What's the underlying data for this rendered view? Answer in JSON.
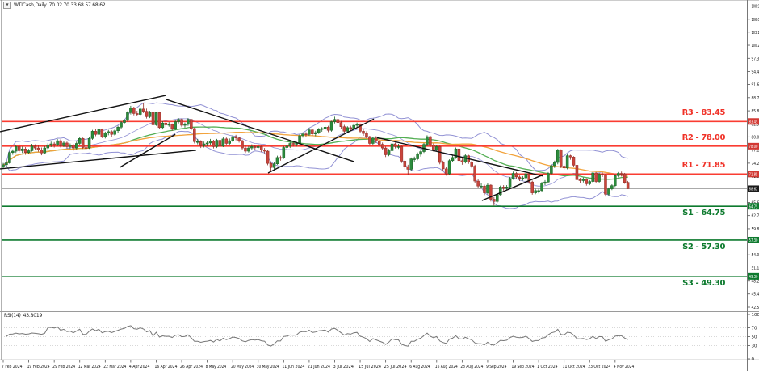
{
  "window": {
    "symbol": "WTICash,Daily",
    "ohlc": "70.02 70.33 68.57 68.62",
    "collapse_icon": "▼"
  },
  "rsi_panel": {
    "label": "RSI(14)",
    "value": "43.8019"
  },
  "chart_data": {
    "type": "candlestick",
    "title": "WTICash,Daily",
    "x_labels": [
      "7 Feb 2024",
      "19 Feb 2024",
      "29 Feb 2024",
      "12 Mar 2024",
      "22 Mar 2024",
      "4 Apr 2024",
      "16 Apr 2024",
      "26 Apr 2024",
      "8 May 2024",
      "20 May 2024",
      "30 May 2024",
      "11 Jun 2024",
      "21 Jun 2024",
      "3 Jul 2024",
      "15 Jul 2024",
      "25 Jul 2024",
      "6 Aug 2024",
      "16 Aug 2024",
      "28 Aug 2024",
      "9 Sep 2024",
      "19 Sep 2024",
      "1 Oct 2024",
      "11 Oct 2024",
      "23 Oct 2024",
      "4 Nov 2024"
    ],
    "bars_per_label": 8,
    "y_ticks": [
      108.9,
      106.0,
      103.15,
      100.25,
      97.35,
      94.45,
      91.6,
      88.7,
      85.8,
      82.9,
      80.05,
      77.15,
      74.25,
      71.35,
      68.45,
      65.6,
      62.7,
      59.8,
      56.9,
      54.05,
      51.15,
      48.25,
      45.4,
      42.5
    ],
    "levels": [
      {
        "name": "R3",
        "label": "R3 - 83.45",
        "axis_label": "83.45",
        "price": 83.45,
        "type": "resistance"
      },
      {
        "name": "R2",
        "label": "R2 - 78.00",
        "axis_label": "78.00",
        "price": 78.0,
        "type": "resistance"
      },
      {
        "name": "R1",
        "label": "R1 - 71.85",
        "axis_label": "71.85",
        "price": 71.85,
        "type": "resistance"
      },
      {
        "name": "S1",
        "label": "S1 - 64.75",
        "axis_label": "64.75",
        "price": 64.75,
        "type": "support"
      },
      {
        "name": "S2",
        "label": "S2 - 57.30",
        "axis_label": "57.30",
        "price": 57.3,
        "type": "support"
      },
      {
        "name": "S3",
        "label": "S3 - 49.30",
        "axis_label": "49.30",
        "price": 49.3,
        "type": "support"
      }
    ],
    "current_price": {
      "price": 68.62,
      "axis_label": "68.62"
    },
    "rsi": {
      "label": "RSI(14)",
      "value": 43.8019,
      "period": 14,
      "range": [
        0,
        100
      ],
      "grid_levels": [
        70,
        50,
        30
      ],
      "axis_ticks": [
        100,
        70,
        50,
        30,
        0
      ]
    },
    "overlays": {
      "bollinger": {
        "period": 20,
        "deviation": 2
      },
      "ma_fast": {
        "period": 40
      },
      "ma_slow": {
        "period": 60
      }
    },
    "trendlines": [
      [
        [
          -1,
          81.2
        ],
        [
          51,
          89.2
        ]
      ],
      [
        [
          -1,
          73.0
        ],
        [
          60.5,
          77.1
        ]
      ],
      [
        [
          36.5,
          73.3
        ],
        [
          54,
          80.6
        ]
      ],
      [
        [
          51.2,
          88.3
        ],
        [
          110,
          74.6
        ]
      ],
      [
        [
          83.1,
          72.1
        ],
        [
          116.3,
          84.0
        ]
      ],
      [
        [
          117.3,
          79.9
        ],
        [
          169.4,
          71.4
        ]
      ],
      [
        [
          150.2,
          66.0
        ],
        [
          169.4,
          71.7
        ]
      ]
    ],
    "candles": [
      [
        73.5,
        74.3,
        73.1,
        73.9
      ],
      [
        73.9,
        74.8,
        73.5,
        74.3
      ],
      [
        74.3,
        76.9,
        74.1,
        76.6
      ],
      [
        76.6,
        77.3,
        76.1,
        76.9
      ],
      [
        76.9,
        78.3,
        76.5,
        77.9
      ],
      [
        77.9,
        78.4,
        76.6,
        77.0
      ],
      [
        77.0,
        77.9,
        76.5,
        77.4
      ],
      [
        77.4,
        77.8,
        76.1,
        76.6
      ],
      [
        76.6,
        77.4,
        76.2,
        77.0
      ],
      [
        77.0,
        78.5,
        76.8,
        78.0
      ],
      [
        78.0,
        78.4,
        77.1,
        77.6
      ],
      [
        77.6,
        78.1,
        76.8,
        77.2
      ],
      [
        77.2,
        77.7,
        76.0,
        76.5
      ],
      [
        76.5,
        78.0,
        76.3,
        77.6
      ],
      [
        77.6,
        78.7,
        77.2,
        78.3
      ],
      [
        78.3,
        79.0,
        77.8,
        78.5
      ],
      [
        78.5,
        78.9,
        77.7,
        78.3
      ],
      [
        78.3,
        79.6,
        78.0,
        79.2
      ],
      [
        79.2,
        79.5,
        77.7,
        78.1
      ],
      [
        78.1,
        79.1,
        77.8,
        78.7
      ],
      [
        78.7,
        79.0,
        77.5,
        77.9
      ],
      [
        77.9,
        78.6,
        77.4,
        78.2
      ],
      [
        78.2,
        78.5,
        77.0,
        77.6
      ],
      [
        77.6,
        79.0,
        77.3,
        78.6
      ],
      [
        78.6,
        80.1,
        78.3,
        79.7
      ],
      [
        79.7,
        79.9,
        77.4,
        77.7
      ],
      [
        77.7,
        78.2,
        77.2,
        77.6
      ],
      [
        77.6,
        80.0,
        77.4,
        79.7
      ],
      [
        79.7,
        81.6,
        79.4,
        81.3
      ],
      [
        81.3,
        81.8,
        80.2,
        80.6
      ],
      [
        80.6,
        82.0,
        80.3,
        81.7
      ],
      [
        81.7,
        81.9,
        79.8,
        80.1
      ],
      [
        80.1,
        81.2,
        79.7,
        80.9
      ],
      [
        80.9,
        81.6,
        80.4,
        81.2
      ],
      [
        81.2,
        81.5,
        80.1,
        80.6
      ],
      [
        80.6,
        81.7,
        80.3,
        81.4
      ],
      [
        81.4,
        82.5,
        81.0,
        82.2
      ],
      [
        82.2,
        83.5,
        81.9,
        83.2
      ],
      [
        83.2,
        84.0,
        82.8,
        83.7
      ],
      [
        83.7,
        85.7,
        83.4,
        85.4
      ],
      [
        85.4,
        86.9,
        85.0,
        86.4
      ],
      [
        86.4,
        86.7,
        84.8,
        85.2
      ],
      [
        85.2,
        85.8,
        84.6,
        85.0
      ],
      [
        85.0,
        86.6,
        84.7,
        86.2
      ],
      [
        86.2,
        87.6,
        85.3,
        85.7
      ],
      [
        85.7,
        86.3,
        84.1,
        84.5
      ],
      [
        84.5,
        85.8,
        84.2,
        85.4
      ],
      [
        85.4,
        85.6,
        82.3,
        82.7
      ],
      [
        82.7,
        85.6,
        82.5,
        85.4
      ],
      [
        85.4,
        85.5,
        81.8,
        82.1
      ],
      [
        82.1,
        83.5,
        81.7,
        83.1
      ],
      [
        83.1,
        83.4,
        82.2,
        82.7
      ],
      [
        82.7,
        83.3,
        82.3,
        82.8
      ],
      [
        82.8,
        83.0,
        81.4,
        81.9
      ],
      [
        81.9,
        83.7,
        81.6,
        83.4
      ],
      [
        83.4,
        84.2,
        83.0,
        83.9
      ],
      [
        83.9,
        84.1,
        82.2,
        82.6
      ],
      [
        82.6,
        83.2,
        82.1,
        82.8
      ],
      [
        82.8,
        84.2,
        82.5,
        83.9
      ],
      [
        83.9,
        84.0,
        81.5,
        81.9
      ],
      [
        81.9,
        82.1,
        78.6,
        79.0
      ],
      [
        79.0,
        79.6,
        78.4,
        79.0
      ],
      [
        79.0,
        79.3,
        77.6,
        78.1
      ],
      [
        78.1,
        79.0,
        77.7,
        78.5
      ],
      [
        78.5,
        79.2,
        78.0,
        78.7
      ],
      [
        78.7,
        79.6,
        78.3,
        79.1
      ],
      [
        79.1,
        79.4,
        77.5,
        77.9
      ],
      [
        77.9,
        79.6,
        77.6,
        79.3
      ],
      [
        79.3,
        79.5,
        77.6,
        78.0
      ],
      [
        78.0,
        80.0,
        77.8,
        79.6
      ],
      [
        79.6,
        79.9,
        78.2,
        78.6
      ],
      [
        78.6,
        79.7,
        78.3,
        79.2
      ],
      [
        79.2,
        80.4,
        78.9,
        80.1
      ],
      [
        80.1,
        80.5,
        79.3,
        79.8
      ],
      [
        79.8,
        80.0,
        78.8,
        79.2
      ],
      [
        79.2,
        79.4,
        77.2,
        77.6
      ],
      [
        77.6,
        78.1,
        76.5,
        76.9
      ],
      [
        76.9,
        78.0,
        76.6,
        77.6
      ],
      [
        77.6,
        78.4,
        77.2,
        77.9
      ],
      [
        77.9,
        78.2,
        77.2,
        77.7
      ],
      [
        77.7,
        78.4,
        77.4,
        77.9
      ],
      [
        77.9,
        78.1,
        76.7,
        77.2
      ],
      [
        77.2,
        77.6,
        76.4,
        76.9
      ],
      [
        76.9,
        77.1,
        73.8,
        74.2
      ],
      [
        74.2,
        74.6,
        72.6,
        73.3
      ],
      [
        73.3,
        74.5,
        72.9,
        74.1
      ],
      [
        74.1,
        75.9,
        73.9,
        75.5
      ],
      [
        75.5,
        75.9,
        74.8,
        75.4
      ],
      [
        75.4,
        78.0,
        75.2,
        77.7
      ],
      [
        77.7,
        78.3,
        77.1,
        78.0
      ],
      [
        78.0,
        79.0,
        77.6,
        78.6
      ],
      [
        78.6,
        78.9,
        77.9,
        78.5
      ],
      [
        78.5,
        79.0,
        77.9,
        78.6
      ],
      [
        78.6,
        80.6,
        78.4,
        80.3
      ],
      [
        80.3,
        81.0,
        79.9,
        80.7
      ],
      [
        80.7,
        81.1,
        80.0,
        80.6
      ],
      [
        80.6,
        82.0,
        80.3,
        81.6
      ],
      [
        81.6,
        81.9,
        80.3,
        80.7
      ],
      [
        80.7,
        81.4,
        80.2,
        81.0
      ],
      [
        81.0,
        82.0,
        80.7,
        81.7
      ],
      [
        81.7,
        82.2,
        81.2,
        81.9
      ],
      [
        81.9,
        82.6,
        81.5,
        82.2
      ],
      [
        82.2,
        82.5,
        81.1,
        81.5
      ],
      [
        81.5,
        83.6,
        81.2,
        83.4
      ],
      [
        83.4,
        84.5,
        83.0,
        83.9
      ],
      [
        83.9,
        84.3,
        82.8,
        83.2
      ],
      [
        83.2,
        83.6,
        81.9,
        82.3
      ],
      [
        82.3,
        82.7,
        80.9,
        81.3
      ],
      [
        81.3,
        82.4,
        81.0,
        82.1
      ],
      [
        82.1,
        82.5,
        81.3,
        81.9
      ],
      [
        81.9,
        83.0,
        81.6,
        82.6
      ],
      [
        82.6,
        83.2,
        82.1,
        82.8
      ],
      [
        82.8,
        83.0,
        80.9,
        81.3
      ],
      [
        81.3,
        81.7,
        80.3,
        80.8
      ],
      [
        80.8,
        81.3,
        79.7,
        80.1
      ],
      [
        80.1,
        80.3,
        78.2,
        78.6
      ],
      [
        78.6,
        80.1,
        78.3,
        79.8
      ],
      [
        79.8,
        80.2,
        78.7,
        79.1
      ],
      [
        79.1,
        79.4,
        77.9,
        78.4
      ],
      [
        78.4,
        78.8,
        77.1,
        77.6
      ],
      [
        77.6,
        77.9,
        75.6,
        76.1
      ],
      [
        76.1,
        77.4,
        75.8,
        77.0
      ],
      [
        77.0,
        78.8,
        76.7,
        78.5
      ],
      [
        78.5,
        78.8,
        77.5,
        77.9
      ],
      [
        77.9,
        78.5,
        77.4,
        77.9
      ],
      [
        77.9,
        78.1,
        74.3,
        74.7
      ],
      [
        74.7,
        75.0,
        72.9,
        73.5
      ],
      [
        73.5,
        73.9,
        71.7,
        72.9
      ],
      [
        72.9,
        75.5,
        72.6,
        75.2
      ],
      [
        75.2,
        75.7,
        74.5,
        75.2
      ],
      [
        75.2,
        76.6,
        74.9,
        76.2
      ],
      [
        76.2,
        77.1,
        75.7,
        76.8
      ],
      [
        76.8,
        78.7,
        76.5,
        78.4
      ],
      [
        78.4,
        80.4,
        78.0,
        80.1
      ],
      [
        80.1,
        80.3,
        77.8,
        78.2
      ],
      [
        78.2,
        78.6,
        76.8,
        77.2
      ],
      [
        77.2,
        78.3,
        76.9,
        77.9
      ],
      [
        77.9,
        78.1,
        74.0,
        74.4
      ],
      [
        74.4,
        74.8,
        72.5,
        73.0
      ],
      [
        73.0,
        73.4,
        71.5,
        71.9
      ],
      [
        71.9,
        75.1,
        71.7,
        74.8
      ],
      [
        74.8,
        76.0,
        74.4,
        75.5
      ],
      [
        75.5,
        77.7,
        75.2,
        77.4
      ],
      [
        77.4,
        77.6,
        74.4,
        74.8
      ],
      [
        74.8,
        75.3,
        73.9,
        74.5
      ],
      [
        74.5,
        76.2,
        74.2,
        75.9
      ],
      [
        75.9,
        76.1,
        74.1,
        74.5
      ],
      [
        74.5,
        74.9,
        73.1,
        73.6
      ],
      [
        73.6,
        73.9,
        69.9,
        70.3
      ],
      [
        70.3,
        70.8,
        68.8,
        69.2
      ],
      [
        69.2,
        69.9,
        68.7,
        69.2
      ],
      [
        69.2,
        69.5,
        67.2,
        67.7
      ],
      [
        67.7,
        69.8,
        67.4,
        69.4
      ],
      [
        69.4,
        69.6,
        65.8,
        66.3
      ],
      [
        66.3,
        66.8,
        64.9,
        65.8
      ],
      [
        65.8,
        67.6,
        65.5,
        67.3
      ],
      [
        67.3,
        69.3,
        67.0,
        69.0
      ],
      [
        69.0,
        69.4,
        68.2,
        68.7
      ],
      [
        68.7,
        69.4,
        68.3,
        69.0
      ],
      [
        69.0,
        71.2,
        68.8,
        70.9
      ],
      [
        70.9,
        72.4,
        70.6,
        72.0
      ],
      [
        72.0,
        72.3,
        70.7,
        71.2
      ],
      [
        71.2,
        71.5,
        70.3,
        70.9
      ],
      [
        70.9,
        71.4,
        70.4,
        71.0
      ],
      [
        71.0,
        72.2,
        70.6,
        71.9
      ],
      [
        71.9,
        72.1,
        69.7,
        70.1
      ],
      [
        70.1,
        70.4,
        67.3,
        67.7
      ],
      [
        67.7,
        68.6,
        67.4,
        68.2
      ],
      [
        68.2,
        68.6,
        67.6,
        68.2
      ],
      [
        68.2,
        70.1,
        67.9,
        69.8
      ],
      [
        69.8,
        70.5,
        69.4,
        70.1
      ],
      [
        70.1,
        72.3,
        69.8,
        72.0
      ],
      [
        72.0,
        74.0,
        71.6,
        73.7
      ],
      [
        73.7,
        74.8,
        73.2,
        74.4
      ],
      [
        74.4,
        77.4,
        74.0,
        77.1
      ],
      [
        77.1,
        77.3,
        73.2,
        73.6
      ],
      [
        73.6,
        74.0,
        72.8,
        73.2
      ],
      [
        73.2,
        76.2,
        72.9,
        75.9
      ],
      [
        75.9,
        76.1,
        75.0,
        75.6
      ],
      [
        75.6,
        75.8,
        73.4,
        73.8
      ],
      [
        73.8,
        74.1,
        70.2,
        70.6
      ],
      [
        70.6,
        71.0,
        69.9,
        70.4
      ],
      [
        70.4,
        71.1,
        70.0,
        70.7
      ],
      [
        70.7,
        70.9,
        69.3,
        69.7
      ],
      [
        69.7,
        70.5,
        69.4,
        70.2
      ],
      [
        70.2,
        72.3,
        69.9,
        72.1
      ],
      [
        72.1,
        72.3,
        69.8,
        70.2
      ],
      [
        70.2,
        72.1,
        69.9,
        71.8
      ],
      [
        71.8,
        72.2,
        71.2,
        71.7
      ],
      [
        71.7,
        71.9,
        66.9,
        67.4
      ],
      [
        67.4,
        68.9,
        67.1,
        68.6
      ],
      [
        68.6,
        69.6,
        68.3,
        69.3
      ],
      [
        69.3,
        71.8,
        69.0,
        71.5
      ],
      [
        71.5,
        72.3,
        71.1,
        72.0
      ],
      [
        72.0,
        72.4,
        71.3,
        71.9
      ],
      [
        71.9,
        72.1,
        69.7,
        70.0
      ],
      [
        70.02,
        70.33,
        68.57,
        68.62
      ]
    ],
    "colors": {
      "bull": "#2c8c3c",
      "bull_stroke": "#175f22",
      "bear": "#c9453c",
      "bear_stroke": "#8e2b24",
      "band": "#9191d4",
      "ma_fast": "#53ae53",
      "ma_slow": "#f2a33c",
      "res_line": "#fa3c32",
      "sup_line": "#0d7a2e",
      "res_badge": "#d23832",
      "sup_badge": "#0d7a2e",
      "current_line": "#aaaaaa",
      "current_badge": "#1a1a1a",
      "trend": "#111111",
      "rsi_line": "#777777",
      "axis_text": "#111111",
      "grid_dash": "#cccccc",
      "separator": "#9a9a9a"
    }
  }
}
